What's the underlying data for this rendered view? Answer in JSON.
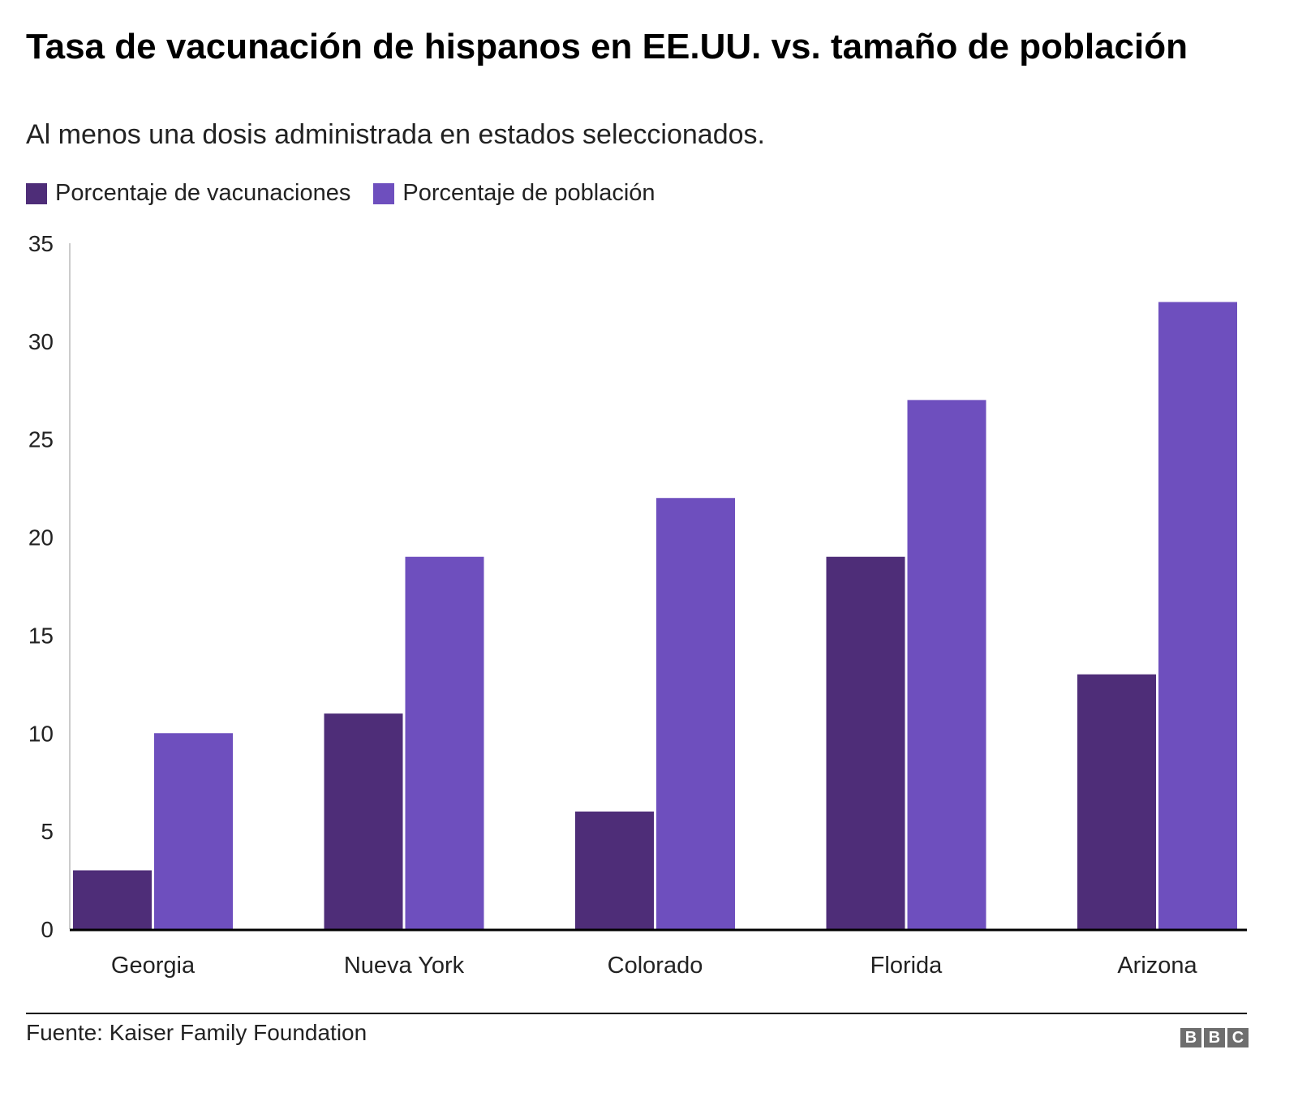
{
  "colors": {
    "vacunaciones": "#4e2d78",
    "poblacion": "#6e4fbe",
    "axis": "#000000",
    "gridline": "#cccccc",
    "logo": "#6e6e6e"
  },
  "footer": {
    "source": "Fuente: Kaiser Family Foundation",
    "logo_letters": [
      "B",
      "B",
      "C"
    ]
  },
  "chart_data": {
    "type": "bar",
    "title": "Tasa de vacunación de hispanos en EE.UU. vs. tamaño de población",
    "subtitle": "Al menos una dosis administrada en estados seleccionados.",
    "xlabel": "",
    "ylabel": "",
    "ylim": [
      0,
      35
    ],
    "yticks": [
      0,
      5,
      10,
      15,
      20,
      25,
      30,
      35
    ],
    "grid": false,
    "legend_position": "top-left",
    "categories": [
      "Georgia",
      "Nueva York",
      "Colorado",
      "Florida",
      "Arizona"
    ],
    "series": [
      {
        "name": "Porcentaje de vacunaciones",
        "color_key": "vacunaciones",
        "values": [
          3,
          11,
          6,
          19,
          13
        ]
      },
      {
        "name": "Porcentaje de población",
        "color_key": "poblacion",
        "values": [
          10,
          19,
          22,
          27,
          32
        ]
      }
    ]
  }
}
